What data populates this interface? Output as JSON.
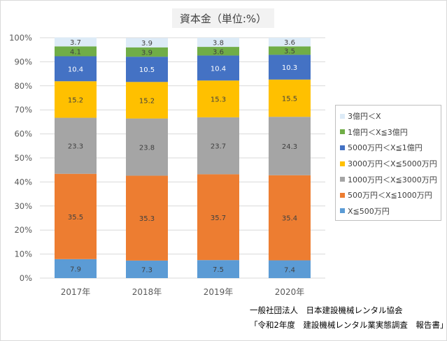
{
  "chart_data": {
    "type": "bar",
    "stacked": true,
    "title": "資本金（単位:%）",
    "categories": [
      "2017年",
      "2018年",
      "2019年",
      "2020年"
    ],
    "ylim": [
      0,
      100
    ],
    "y_ticks": [
      "0%",
      "10%",
      "20%",
      "30%",
      "40%",
      "50%",
      "60%",
      "70%",
      "80%",
      "90%",
      "100%"
    ],
    "grid": true,
    "legend_position": "right",
    "series": [
      {
        "name": "X≦500万円",
        "color": "#5b9bd5",
        "label_color": "#404040",
        "values": [
          7.9,
          7.3,
          7.5,
          7.4
        ]
      },
      {
        "name": "500万円＜X≦1000万円",
        "color": "#ed7d31",
        "label_color": "#404040",
        "values": [
          35.5,
          35.3,
          35.7,
          35.4
        ]
      },
      {
        "name": "1000万円＜X≦3000万円",
        "color": "#a5a5a5",
        "label_color": "#404040",
        "values": [
          23.3,
          23.8,
          23.7,
          24.3
        ]
      },
      {
        "name": "3000万円＜X≦5000万円",
        "color": "#ffc000",
        "label_color": "#404040",
        "values": [
          15.2,
          15.2,
          15.3,
          15.5
        ]
      },
      {
        "name": "5000万円＜X≦1億円",
        "color": "#4472c4",
        "label_color": "#ffffff",
        "values": [
          10.4,
          10.5,
          10.4,
          10.3
        ]
      },
      {
        "name": "1億円＜X≦3億円",
        "color": "#70ad47",
        "label_color": "#404040",
        "values": [
          4.1,
          3.9,
          3.6,
          3.5
        ]
      },
      {
        "name": "3億円＜X",
        "color": "#ddebf7",
        "label_color": "#404040",
        "values": [
          3.7,
          3.9,
          3.8,
          3.6
        ]
      }
    ]
  },
  "source": {
    "line1": "一般社団法人　日本建設機械レンタル協会",
    "line2": "「令和2年度　建設機械レンタル業実態調査　報告書」"
  }
}
